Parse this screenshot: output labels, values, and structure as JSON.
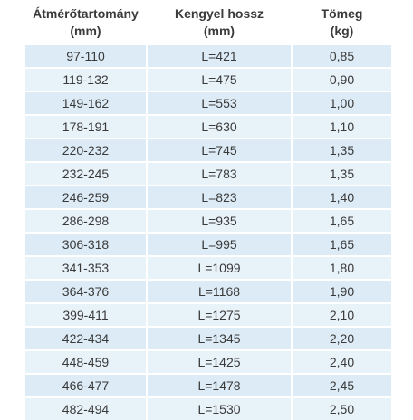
{
  "header": {
    "col1_line1": "Átmérőtartomány",
    "col1_line2": "(mm)",
    "col2_line1": "Kengyel hossz",
    "col2_line2": "(mm)",
    "col3_line1": "Tömeg",
    "col3_line2": "(kg)"
  },
  "rows": [
    {
      "range": "97-110",
      "length": "L=421",
      "mass": "0,85"
    },
    {
      "range": "119-132",
      "length": "L=475",
      "mass": "0,90"
    },
    {
      "range": "149-162",
      "length": "L=553",
      "mass": "1,00"
    },
    {
      "range": "178-191",
      "length": "L=630",
      "mass": "1,10"
    },
    {
      "range": "220-232",
      "length": "L=745",
      "mass": "1,35"
    },
    {
      "range": "232-245",
      "length": "L=783",
      "mass": "1,35"
    },
    {
      "range": "246-259",
      "length": "L=823",
      "mass": "1,40"
    },
    {
      "range": "286-298",
      "length": "L=935",
      "mass": "1,65"
    },
    {
      "range": "306-318",
      "length": "L=995",
      "mass": "1,65"
    },
    {
      "range": "341-353",
      "length": "L=1099",
      "mass": "1,80"
    },
    {
      "range": "364-376",
      "length": "L=1168",
      "mass": "1,90"
    },
    {
      "range": "399-411",
      "length": "L=1275",
      "mass": "2,10"
    },
    {
      "range": "422-434",
      "length": "L=1345",
      "mass": "2,20"
    },
    {
      "range": "448-459",
      "length": "L=1425",
      "mass": "2,40"
    },
    {
      "range": "466-477",
      "length": "L=1478",
      "mass": "2,45"
    },
    {
      "range": "482-494",
      "length": "L=1530",
      "mass": "2,50"
    }
  ],
  "colors": {
    "row_odd": "#dcebf5",
    "row_even": "#e8f2f9",
    "text": "#3a3a3a"
  }
}
